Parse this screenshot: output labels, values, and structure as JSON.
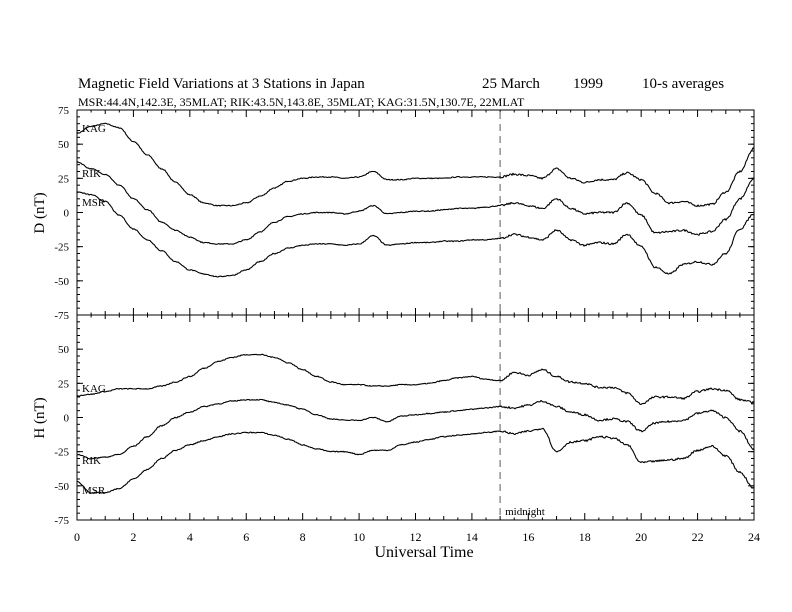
{
  "header": {
    "title": "Magnetic Field Variations at 3 Stations in Japan",
    "date": "25 March",
    "year": "1999",
    "averaging": "10-s averages",
    "stations_line": "MSR:44.4N,142.3E, 35MLAT;   RIK:43.5N,143.8E, 35MLAT;   KAG:31.5N,130.7E, 22MLAT"
  },
  "chart_data": [
    {
      "type": "line",
      "panel": "top",
      "ylabel": "D (nT)",
      "ylim": [
        -75,
        75
      ],
      "yticks": [
        "75",
        "50",
        "25",
        "0",
        "-25",
        "-50",
        "-75"
      ],
      "xlim": [
        0,
        24
      ],
      "series": [
        {
          "name": "KAG",
          "x": [
            0,
            0.5,
            1,
            1.5,
            2,
            2.5,
            3,
            3.5,
            4,
            4.5,
            5,
            5.5,
            6,
            6.5,
            7,
            7.5,
            8,
            8.5,
            9,
            9.5,
            10,
            10.5,
            11,
            11.5,
            12,
            12.5,
            13,
            13.5,
            14,
            14.5,
            15,
            15.5,
            16,
            16.5,
            17,
            17.5,
            18,
            18.5,
            19,
            19.5,
            20,
            20.5,
            21,
            21.5,
            22,
            22.5,
            23,
            23.5,
            24
          ],
          "values": [
            58,
            63,
            65,
            62,
            52,
            42,
            32,
            22,
            13,
            7,
            5,
            5,
            7,
            12,
            18,
            23,
            25,
            26,
            26,
            25,
            26,
            30,
            24,
            24,
            25,
            25,
            25,
            26,
            26,
            26,
            26,
            28,
            27,
            25,
            32,
            25,
            22,
            24,
            24,
            29,
            24,
            14,
            7,
            8,
            5,
            6,
            15,
            30,
            47
          ]
        },
        {
          "name": "RIK",
          "x": [
            0,
            0.5,
            1,
            1.5,
            2,
            2.5,
            3,
            3.5,
            4,
            4.5,
            5,
            5.5,
            6,
            6.5,
            7,
            7.5,
            8,
            8.5,
            9,
            9.5,
            10,
            10.5,
            11,
            11.5,
            12,
            12.5,
            13,
            13.5,
            14,
            14.5,
            15,
            15.5,
            16,
            16.5,
            17,
            17.5,
            18,
            18.5,
            19,
            19.5,
            20,
            20.5,
            21,
            21.5,
            22,
            22.5,
            23,
            23.5,
            24
          ],
          "values": [
            37,
            32,
            28,
            20,
            10,
            2,
            -7,
            -13,
            -18,
            -22,
            -23,
            -23,
            -20,
            -14,
            -7,
            -3,
            -1,
            0,
            0,
            -1,
            1,
            5,
            -1,
            0,
            1,
            1,
            2,
            3,
            3,
            4,
            5,
            7,
            5,
            3,
            10,
            3,
            -1,
            0,
            0,
            7,
            -2,
            -15,
            -14,
            -13,
            -16,
            -14,
            -5,
            10,
            25
          ]
        },
        {
          "name": "MSR",
          "x": [
            0,
            0.5,
            1,
            1.5,
            2,
            2.5,
            3,
            3.5,
            4,
            4.5,
            5,
            5.5,
            6,
            6.5,
            7,
            7.5,
            8,
            8.5,
            9,
            9.5,
            10,
            10.5,
            11,
            11.5,
            12,
            12.5,
            13,
            13.5,
            14,
            14.5,
            15,
            15.5,
            16,
            16.5,
            17,
            17.5,
            18,
            18.5,
            19,
            19.5,
            20,
            20.5,
            21,
            21.5,
            22,
            22.5,
            23,
            23.5,
            24
          ],
          "values": [
            15,
            13,
            8,
            -2,
            -12,
            -20,
            -28,
            -36,
            -42,
            -45,
            -47,
            -46,
            -42,
            -36,
            -30,
            -26,
            -24,
            -23,
            -23,
            -24,
            -23,
            -17,
            -24,
            -23,
            -22,
            -22,
            -21,
            -21,
            -20,
            -20,
            -19,
            -16,
            -18,
            -20,
            -13,
            -20,
            -24,
            -22,
            -23,
            -16,
            -25,
            -40,
            -45,
            -38,
            -36,
            -38,
            -30,
            -12,
            -1
          ]
        }
      ]
    },
    {
      "type": "line",
      "panel": "bottom",
      "ylabel": "H (nT)",
      "xlabel": "Universal Time",
      "ylim": [
        -75,
        75
      ],
      "yticks": [
        "50",
        "25",
        "0",
        "-25",
        "-50",
        "-75"
      ],
      "xlim": [
        0,
        24
      ],
      "xticks": [
        "0",
        "2",
        "4",
        "6",
        "8",
        "10",
        "12",
        "14",
        "16",
        "18",
        "20",
        "22",
        "24"
      ],
      "series": [
        {
          "name": "KAG",
          "x": [
            0,
            0.5,
            1,
            1.5,
            2,
            2.5,
            3,
            3.5,
            4,
            4.5,
            5,
            5.5,
            6,
            6.5,
            7,
            7.5,
            8,
            8.5,
            9,
            9.5,
            10,
            10.5,
            11,
            11.5,
            12,
            12.5,
            13,
            13.5,
            14,
            14.5,
            15,
            15.5,
            16,
            16.5,
            17,
            17.5,
            18,
            18.5,
            19,
            19.5,
            20,
            20.5,
            21,
            21.5,
            22,
            22.5,
            23,
            23.5,
            24
          ],
          "values": [
            16,
            17,
            19,
            21,
            21,
            21,
            23,
            26,
            30,
            36,
            41,
            44,
            46,
            46,
            44,
            40,
            35,
            30,
            26,
            24,
            24,
            23,
            23,
            24,
            24,
            25,
            27,
            29,
            30,
            28,
            27,
            33,
            31,
            35,
            30,
            26,
            25,
            22,
            22,
            18,
            10,
            15,
            15,
            14,
            19,
            21,
            20,
            13,
            11
          ]
        },
        {
          "name": "RIK",
          "x": [
            0,
            0.5,
            1,
            1.5,
            2,
            2.5,
            3,
            3.5,
            4,
            4.5,
            5,
            5.5,
            6,
            6.5,
            7,
            7.5,
            8,
            8.5,
            9,
            9.5,
            10,
            10.5,
            11,
            11.5,
            12,
            12.5,
            13,
            13.5,
            14,
            14.5,
            15,
            15.5,
            16,
            16.5,
            17,
            17.5,
            18,
            18.5,
            19,
            19.5,
            20,
            20.5,
            21,
            21.5,
            22,
            22.5,
            23,
            23.5,
            24
          ],
          "values": [
            -27,
            -30,
            -29,
            -27,
            -21,
            -14,
            -6,
            0,
            4,
            8,
            10,
            12,
            13,
            13,
            11,
            9,
            6,
            2,
            -1,
            -2,
            -2,
            0,
            -3,
            1,
            2,
            3,
            4,
            5,
            6,
            7,
            8,
            7,
            9,
            12,
            8,
            4,
            2,
            -2,
            -1,
            -3,
            -10,
            -4,
            -3,
            -2,
            3,
            5,
            0,
            -10,
            -23
          ]
        },
        {
          "name": "MSR",
          "x": [
            0,
            0.5,
            1,
            1.5,
            2,
            2.5,
            3,
            3.5,
            4,
            4.5,
            5,
            5.5,
            6,
            6.5,
            7,
            7.5,
            8,
            8.5,
            9,
            9.5,
            10,
            10.5,
            11,
            11.5,
            12,
            12.5,
            13,
            13.5,
            14,
            14.5,
            15,
            15.5,
            16,
            16.5,
            17,
            17.5,
            18,
            18.5,
            19,
            19.5,
            20,
            20.5,
            21,
            21.5,
            22,
            22.5,
            23,
            23.5,
            24
          ],
          "values": [
            -47,
            -55,
            -55,
            -52,
            -45,
            -38,
            -30,
            -24,
            -20,
            -17,
            -14,
            -12,
            -11,
            -11,
            -13,
            -16,
            -20,
            -23,
            -25,
            -25,
            -27,
            -24,
            -24,
            -20,
            -18,
            -16,
            -14,
            -13,
            -12,
            -11,
            -10,
            -12,
            -10,
            -8,
            -25,
            -18,
            -17,
            -14,
            -15,
            -20,
            -33,
            -32,
            -31,
            -30,
            -24,
            -21,
            -28,
            -40,
            -52
          ]
        }
      ]
    }
  ],
  "annotations": {
    "midnight_label": "midnight",
    "midnight_ut": 15
  },
  "labels": {
    "top_kag": "KAG",
    "top_rik": "RIK",
    "top_msr": "MSR",
    "bot_kag": "KAG",
    "bot_rik": "RIK",
    "bot_msr": "MSR"
  }
}
